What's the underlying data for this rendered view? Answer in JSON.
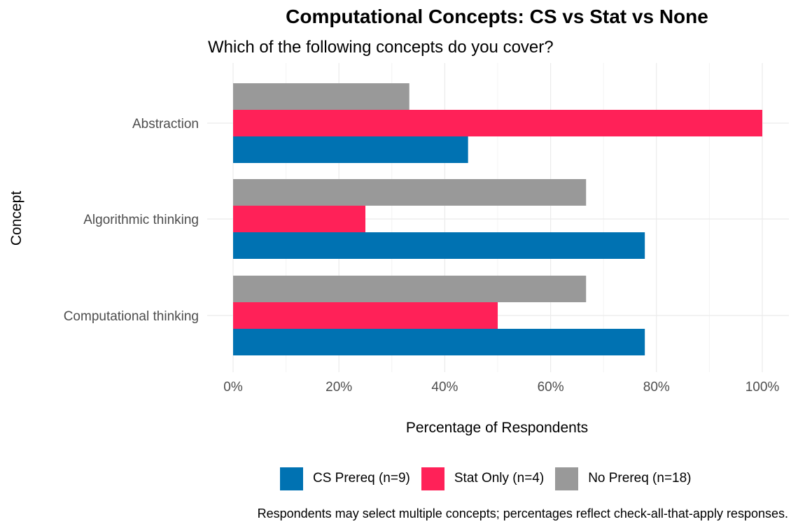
{
  "chart_data": {
    "type": "bar",
    "orientation": "horizontal",
    "title": "Computational Concepts: CS vs Stat vs None",
    "subtitle": "Which of the following concepts do you cover?",
    "xlabel": "Percentage of Respondents",
    "ylabel": "Concept",
    "caption": "Respondents may select multiple concepts; percentages reflect check-all-that-apply responses.",
    "categories": [
      "Abstraction",
      "Algorithmic thinking",
      "Computational thinking"
    ],
    "x_ticks": [
      "0%",
      "20%",
      "40%",
      "60%",
      "80%",
      "100%"
    ],
    "xlim": [
      0,
      100
    ],
    "grid": true,
    "legend_position": "bottom",
    "series": [
      {
        "name": "CS Prereq (n=9)",
        "color": "#0072B2",
        "values": [
          44.4,
          77.8,
          77.8
        ]
      },
      {
        "name": "Stat Only (n=4)",
        "color": "#FF2158",
        "values": [
          100,
          25,
          50
        ]
      },
      {
        "name": "No Prereq (n=18)",
        "color": "#999999",
        "values": [
          33.3,
          66.7,
          66.7
        ]
      }
    ]
  }
}
